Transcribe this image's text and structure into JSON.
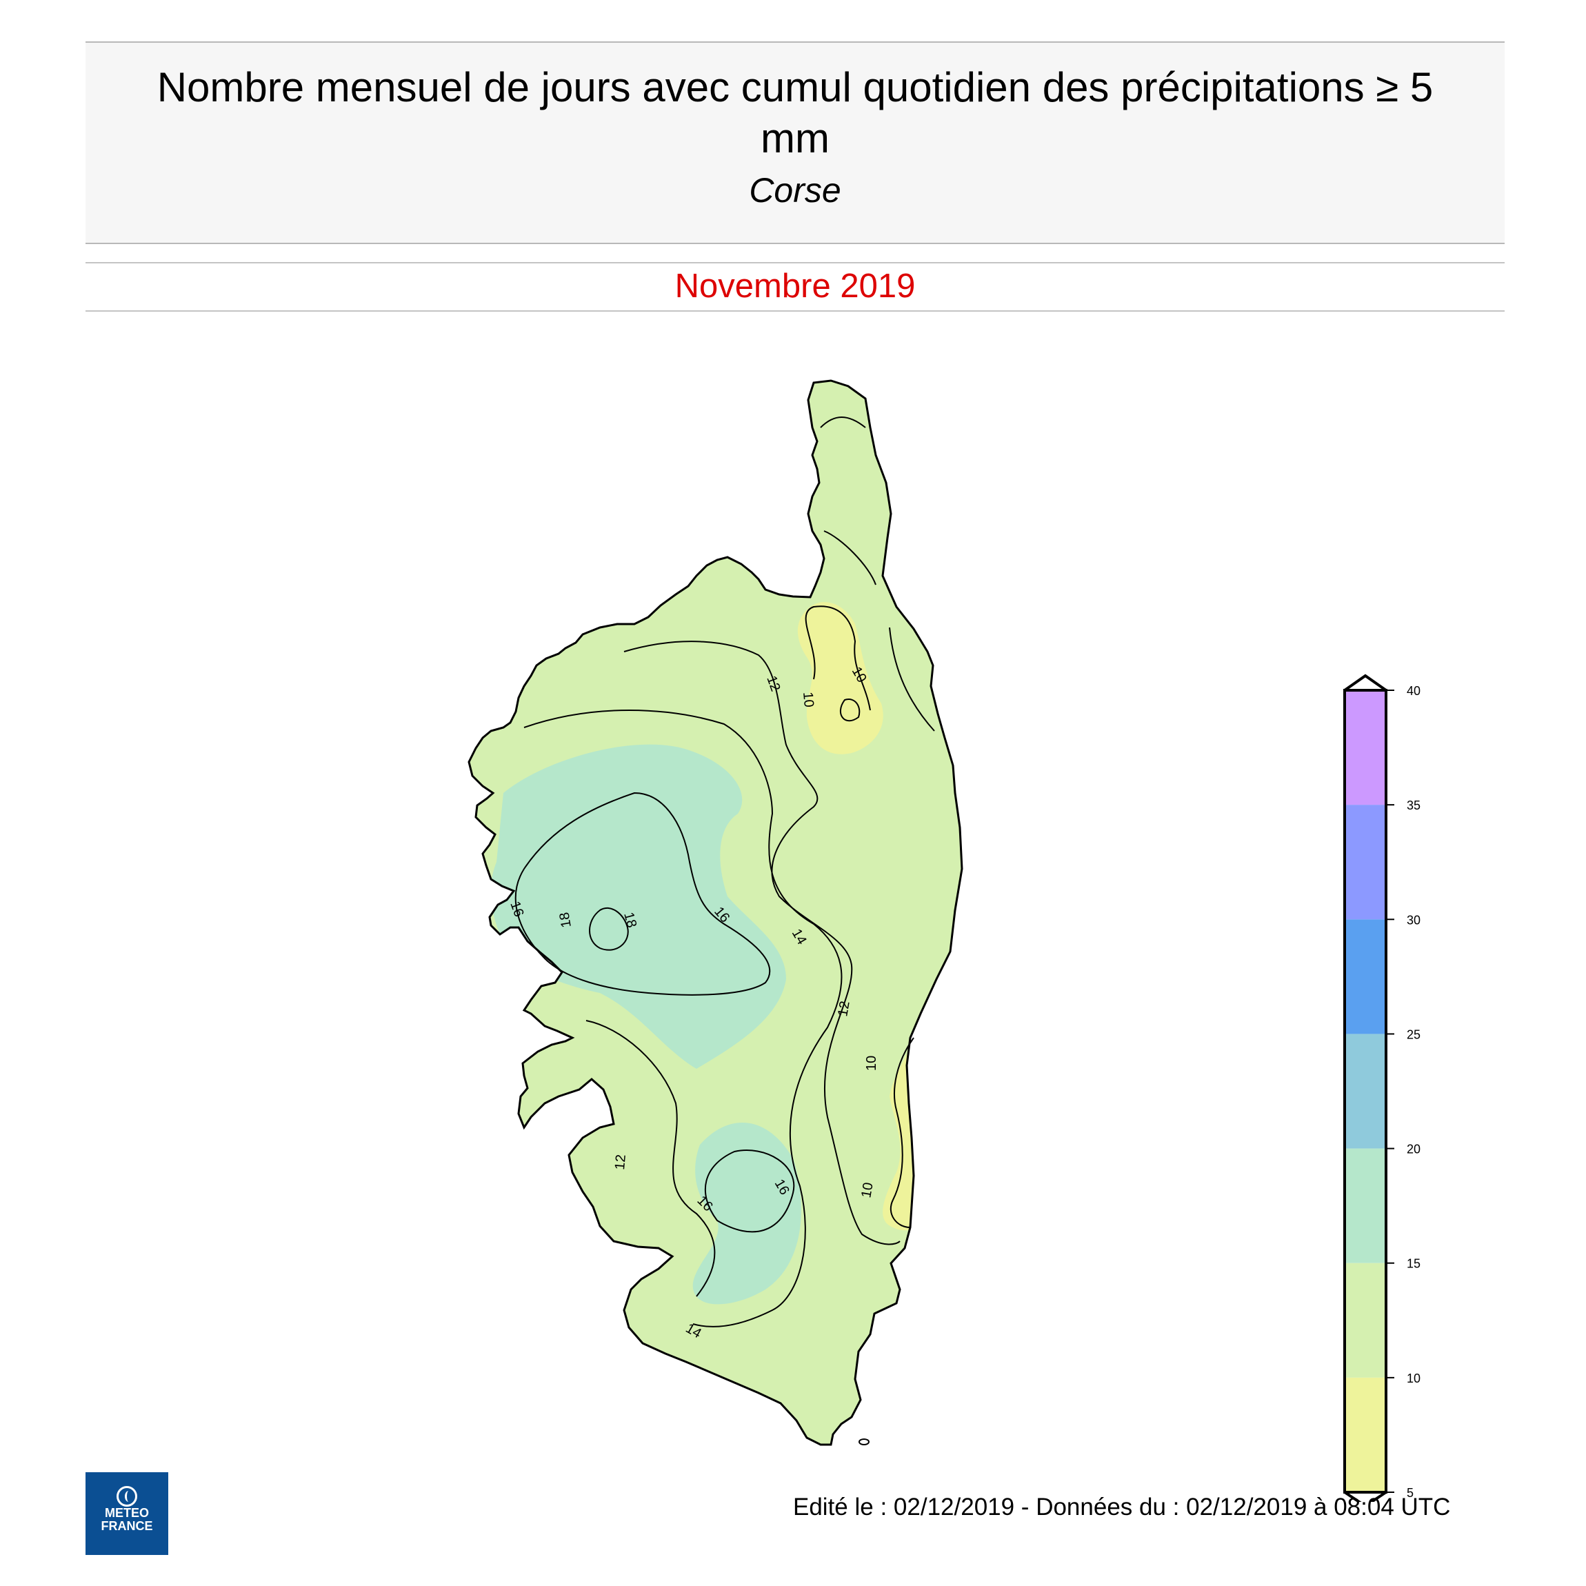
{
  "header": {
    "title": "Nombre mensuel de jours avec cumul quotidien des précipitations ≥ 5 mm",
    "region": "Corse",
    "period": "Novembre 2019"
  },
  "map": {
    "contour_labels": [
      {
        "id": "c12-north",
        "text": "12"
      },
      {
        "id": "c10-north-a",
        "text": "10"
      },
      {
        "id": "c10-north-b",
        "text": "10"
      },
      {
        "id": "c16-west",
        "text": "16"
      },
      {
        "id": "c18-a",
        "text": "18"
      },
      {
        "id": "c18-b",
        "text": "18"
      },
      {
        "id": "c16-center",
        "text": "16"
      },
      {
        "id": "c14-center",
        "text": "14"
      },
      {
        "id": "c12-east",
        "text": "12"
      },
      {
        "id": "c10-east-a",
        "text": "10"
      },
      {
        "id": "c10-east-b",
        "text": "10"
      },
      {
        "id": "c12-south",
        "text": "12"
      },
      {
        "id": "c16-south-a",
        "text": "16"
      },
      {
        "id": "c16-south-b",
        "text": "16"
      },
      {
        "id": "c14-south",
        "text": "14"
      }
    ],
    "colors": {
      "outline": "#000000",
      "band_5_10": "#eef39b",
      "band_10_15": "#d5f0b0",
      "band_15_20": "#b5e7cb"
    }
  },
  "legend": {
    "ticks": [
      "40",
      "35",
      "30",
      "25",
      "20",
      "15",
      "10",
      "5"
    ],
    "bands": [
      {
        "from": 35,
        "to": 40,
        "color": "#cc99ff"
      },
      {
        "from": 30,
        "to": 35,
        "color": "#8c99ff"
      },
      {
        "from": 25,
        "to": 30,
        "color": "#5aa0f0"
      },
      {
        "from": 20,
        "to": 25,
        "color": "#8fcadc"
      },
      {
        "from": 15,
        "to": 20,
        "color": "#b5e7cb"
      },
      {
        "from": 10,
        "to": 15,
        "color": "#d5f0b0"
      },
      {
        "from": 5,
        "to": 10,
        "color": "#eef39b"
      }
    ],
    "range": [
      5,
      40
    ]
  },
  "footer": {
    "edition": "Edité le : 02/12/2019 - Données du : 02/12/2019 à 08:04 UTC"
  },
  "logo": {
    "line1": "METEO",
    "line2": "FRANCE"
  }
}
